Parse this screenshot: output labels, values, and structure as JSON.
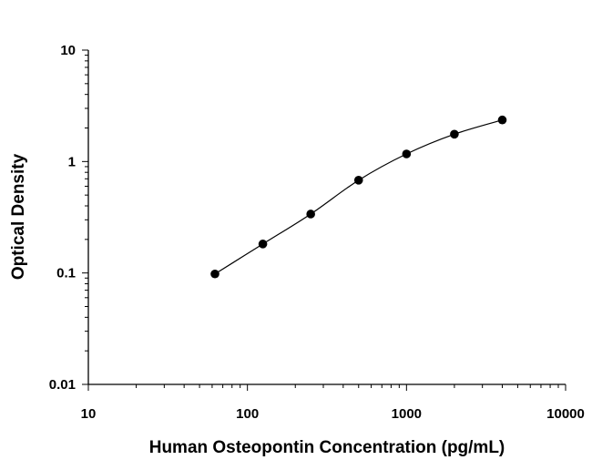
{
  "chart_data": {
    "type": "scatter",
    "xlabel": "Human Osteopontin Concentration (pg/mL)",
    "ylabel": "Optical Density",
    "x_scale": "log",
    "y_scale": "log",
    "xlim": [
      10,
      10000
    ],
    "ylim": [
      0.01,
      10
    ],
    "x_ticks": [
      "10",
      "100",
      "1000",
      "10000"
    ],
    "y_ticks": [
      "0.01",
      "0.1",
      "1",
      "10"
    ],
    "grid": false,
    "series": [
      {
        "x": [
          62.5,
          125,
          250,
          500,
          1000,
          2000,
          4000
        ],
        "y": [
          0.098,
          0.182,
          0.338,
          0.68,
          1.17,
          1.76,
          2.36
        ]
      }
    ],
    "colors": {
      "points": "#000000",
      "curve": "#000000",
      "axes": "#000000"
    }
  }
}
